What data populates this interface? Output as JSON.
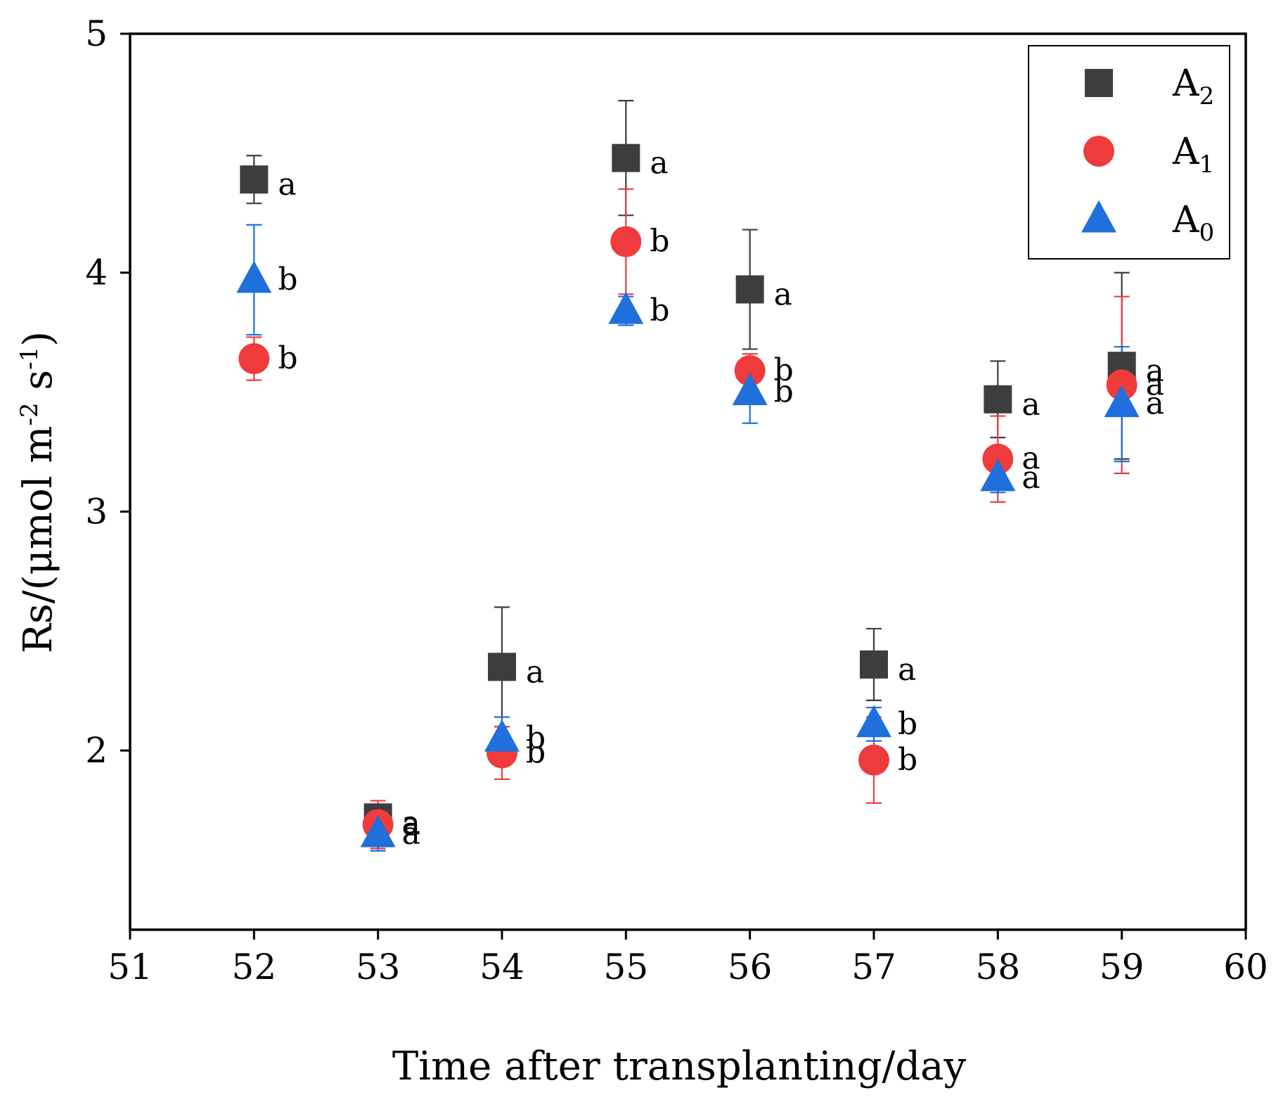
{
  "chart_data": {
    "type": "scatter",
    "title": "",
    "xlabel": "Time after transplanting/day",
    "ylabel": {
      "prefix": "Rs/(μmol m",
      "sup1": "-2",
      "mid": " s",
      "sup2": "-1",
      "suffix": ")"
    },
    "xlim": [
      51,
      60
    ],
    "ylim": [
      1.25,
      5
    ],
    "xticks": [
      "51",
      "52",
      "53",
      "54",
      "55",
      "56",
      "57",
      "58",
      "59",
      "60"
    ],
    "yticks": [
      "2",
      "3",
      "4",
      "5"
    ],
    "legend_position": "top-right",
    "series": [
      {
        "name": "A2",
        "legend_base": "A",
        "legend_sub": "2",
        "marker": "square",
        "color": "#3d3d3d",
        "x": [
          52,
          53,
          54,
          55,
          56,
          57,
          58,
          59
        ],
        "y": [
          4.39,
          1.72,
          2.35,
          4.48,
          3.93,
          2.36,
          3.47,
          3.61
        ],
        "err": [
          0.1,
          0.05,
          0.25,
          0.24,
          0.25,
          0.15,
          0.16,
          0.39
        ],
        "letters": [
          "a",
          "a",
          "a",
          "a",
          "a",
          "a",
          "a",
          "a"
        ]
      },
      {
        "name": "A1",
        "legend_base": "A",
        "legend_sub": "1",
        "marker": "circle",
        "color": "#ef3b3b",
        "x": [
          52,
          53,
          54,
          55,
          56,
          57,
          58,
          59
        ],
        "y": [
          3.64,
          1.69,
          1.99,
          4.13,
          3.59,
          1.96,
          3.22,
          3.53
        ],
        "err": [
          0.09,
          0.1,
          0.11,
          0.22,
          0.07,
          0.18,
          0.18,
          0.37
        ],
        "letters": [
          "b",
          "a",
          "b",
          "b",
          "b",
          "b",
          "a",
          "a"
        ]
      },
      {
        "name": "A0",
        "legend_base": "A",
        "legend_sub": "0",
        "marker": "triangle",
        "color": "#1f6fdc",
        "x": [
          52,
          53,
          54,
          55,
          56,
          57,
          58,
          59
        ],
        "y": [
          3.97,
          1.65,
          2.05,
          3.84,
          3.5,
          2.11,
          3.14,
          3.45
        ],
        "err": [
          0.23,
          0.07,
          0.09,
          0.06,
          0.13,
          0.07,
          0.06,
          0.24
        ],
        "letters": [
          "b",
          "a",
          "b",
          "b",
          "b",
          "b",
          "a",
          "a"
        ]
      }
    ]
  }
}
